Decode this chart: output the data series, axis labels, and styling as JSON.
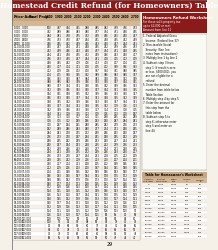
{
  "title": "Homestead Credit Refund (for Homeowners) Table",
  "title_bg": "#8B1A1A",
  "title_color": "#FFFFFF",
  "page_bg": "#F5F0E8",
  "main_table_header_bg": "#C8A882",
  "right_panel_header_bg": "#8B1A1A",
  "right_panel_header_color": "#FFFFFF",
  "right_panel_title": "Homeowners Refund Worksheet",
  "bottom_table_title": "Table for Homeowner's Worksheet",
  "footer_text": "29",
  "tax_amounts": [
    "1,800",
    "1,900",
    "2,000",
    "2,100",
    "2,200",
    "2,300",
    "2,400",
    "2,500",
    "2,600",
    "2,700"
  ],
  "bt_rows": [
    [
      "0",
      "1,000",
      "0.090",
      "45",
      "90"
    ],
    [
      "1,000",
      "2,000",
      "0.100",
      "100",
      "100"
    ],
    [
      "2,000",
      "3,000",
      "0.110",
      "110",
      "110"
    ],
    [
      "3,000",
      "5,000",
      "0.120",
      "180",
      "120"
    ],
    [
      "5,000",
      "7,000",
      "0.130",
      "260",
      "130"
    ],
    [
      "7,000",
      "10,000",
      "0.140",
      "350",
      "140"
    ],
    [
      "10,000",
      "14,000",
      "0.160",
      "480",
      "160"
    ],
    [
      "14,000",
      "20,000",
      "0.180",
      "720",
      "180"
    ],
    [
      "20,000",
      "30,000",
      "0.200",
      "1,000",
      "200"
    ],
    [
      "30,000",
      "40,000",
      "0.210",
      "1,050",
      "210"
    ],
    [
      "40,000",
      "55,000",
      "0.220",
      "1,210",
      "220"
    ],
    [
      "55,000",
      "70,000",
      "0.230",
      "1,380",
      "230"
    ],
    [
      "70,000",
      "90,000",
      "0.240",
      "1,680",
      "240"
    ],
    [
      "90,000",
      "and up",
      "0.250",
      "",
      "250"
    ]
  ],
  "col_labels": [
    "If step 3\nis at least",
    "But not\nmore than",
    "Copay\nrate",
    "Amount\nA",
    "Amount\nB"
  ],
  "steps_text": [
    "1. Federal Adjusted Gross",
    "   Income: (Federal line 37)",
    "2. Non-taxable Social",
    "   Security: (See line",
    "   notes from instructions)",
    "3. Multiply line 1 by line 2",
    "4. Subtract step 3 from",
    "   step 1 (If result is zero",
    "   or less, $500,000), you",
    "   are not eligible for a",
    "   refund",
    "5. Enter the decimal",
    "   number from table below",
    "   Table Section",
    "6. Multiply step 4 by step 5",
    "7. Enter the amount for",
    "   this step from the",
    "   table below",
    "8. Subtract step 5 to",
    "   step 6; otherwise enter",
    "   step 5 and enter on",
    "   line 44"
  ]
}
